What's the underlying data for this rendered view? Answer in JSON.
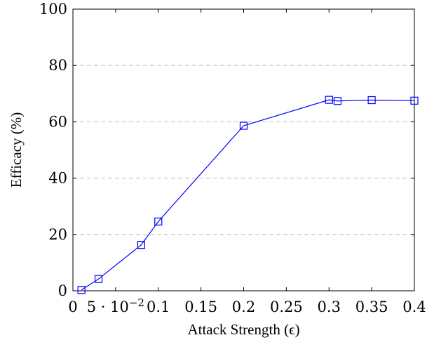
{
  "chart_data": {
    "type": "line",
    "title": "",
    "xlabel": "Attack Strength (ϵ)",
    "ylabel": "Efficacy (%)",
    "xlim": [
      0,
      0.4
    ],
    "ylim": [
      0,
      100
    ],
    "grid": "horizontal dashed",
    "legend": "none",
    "series": [
      {
        "color": "#0000ff",
        "marker": "square",
        "x": [
          0.01,
          0.03,
          0.08,
          0.1,
          0.2,
          0.3,
          0.31,
          0.35,
          0.4
        ],
        "y": [
          0.3,
          4.2,
          16.3,
          24.6,
          58.6,
          67.8,
          67.4,
          67.7,
          67.5
        ]
      }
    ],
    "x_ticks": [
      {
        "value": 0,
        "label": "0"
      },
      {
        "value": 0.05,
        "label": "5 · 10",
        "exp": "−2"
      },
      {
        "value": 0.1,
        "label": "0.1"
      },
      {
        "value": 0.15,
        "label": "0.15"
      },
      {
        "value": 0.2,
        "label": "0.2"
      },
      {
        "value": 0.25,
        "label": "0.25"
      },
      {
        "value": 0.3,
        "label": "0.3"
      },
      {
        "value": 0.35,
        "label": "0.35"
      },
      {
        "value": 0.4,
        "label": "0.4"
      }
    ],
    "y_ticks": [
      {
        "value": 0,
        "label": "0"
      },
      {
        "value": 20,
        "label": "20"
      },
      {
        "value": 40,
        "label": "40"
      },
      {
        "value": 60,
        "label": "60"
      },
      {
        "value": 80,
        "label": "80"
      },
      {
        "value": 100,
        "label": "100"
      }
    ]
  }
}
